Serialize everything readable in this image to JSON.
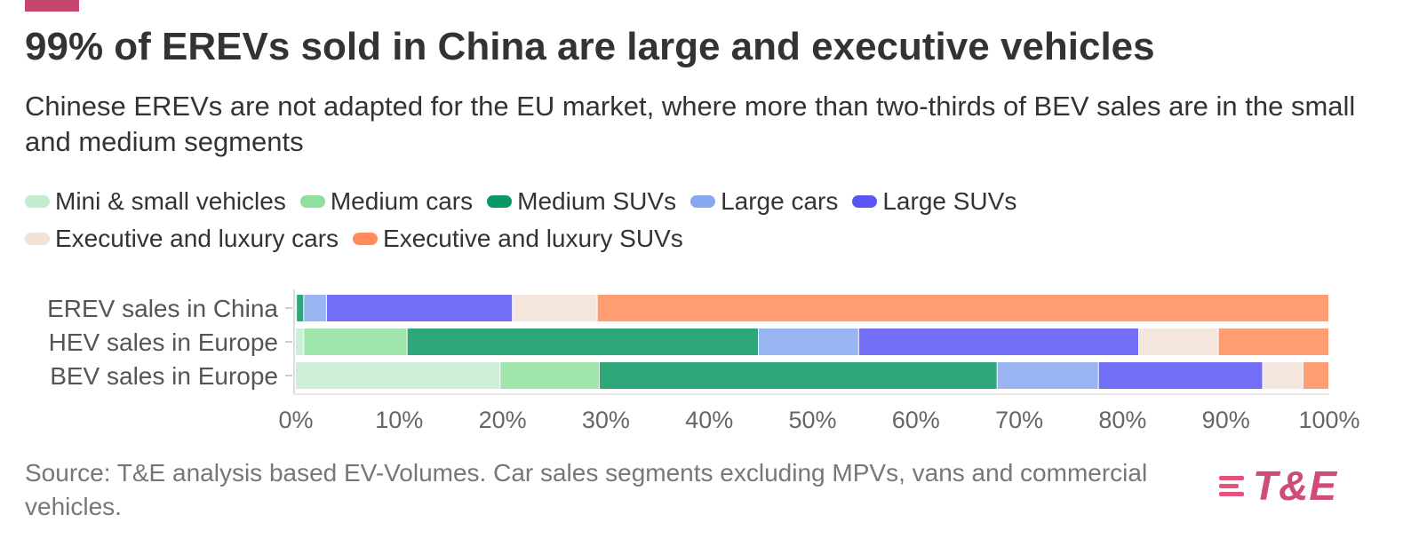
{
  "header": {
    "title": "99% of EREVs sold in China are large and executive vehicles",
    "subtitle": "Chinese EREVs are not adapted for the EU market, where more than two-thirds of BEV sales are in the small and medium segments"
  },
  "legend": [
    {
      "label": "Mini & small vehicles",
      "color": "#c3ecce"
    },
    {
      "label": "Medium cars",
      "color": "#8fe09e"
    },
    {
      "label": "Medium SUVs",
      "color": "#0a9864"
    },
    {
      "label": "Large cars",
      "color": "#86a8f0"
    },
    {
      "label": "Large SUVs",
      "color": "#5b55f5"
    },
    {
      "label": "Executive and luxury cars",
      "color": "#f2e2d6"
    },
    {
      "label": "Executive and luxury SUVs",
      "color": "#ff8c5a"
    }
  ],
  "chart_data": {
    "type": "bar",
    "orientation": "horizontal",
    "stacked": true,
    "title": "99% of EREVs sold in China are large and executive vehicles",
    "categories": [
      "EREV sales in China",
      "HEV sales in Europe",
      "BEV sales in Europe"
    ],
    "series": [
      {
        "name": "Mini & small vehicles",
        "color": "#c3ecce",
        "values": [
          0.1,
          0.8,
          19.8
        ]
      },
      {
        "name": "Medium cars",
        "color": "#8fe09e",
        "values": [
          0.0,
          10.0,
          9.6
        ]
      },
      {
        "name": "Medium SUVs",
        "color": "#0a9864",
        "values": [
          0.7,
          34.0,
          38.5
        ]
      },
      {
        "name": "Large cars",
        "color": "#86a8f0",
        "values": [
          2.2,
          9.7,
          9.8
        ]
      },
      {
        "name": "Large SUVs",
        "color": "#5b55f5",
        "values": [
          18.0,
          27.1,
          15.9
        ]
      },
      {
        "name": "Executive and luxury cars",
        "color": "#f2e2d6",
        "values": [
          8.2,
          7.7,
          3.9
        ]
      },
      {
        "name": "Executive and luxury SUVs",
        "color": "#ff8c5a",
        "values": [
          70.8,
          10.7,
          2.5
        ]
      }
    ],
    "xlim": [
      0,
      100
    ],
    "xticks": [
      0,
      10,
      20,
      30,
      40,
      50,
      60,
      70,
      80,
      90,
      100
    ],
    "tick_suffix": "%",
    "xlabel": "",
    "ylabel": "",
    "legend_position": "top"
  },
  "footer": {
    "source": "Source: T&E analysis based EV-Volumes. Car sales segments excluding MPVs, vans and commercial vehicles."
  },
  "logo": {
    "text": "T&E",
    "color": "#d14b7a"
  }
}
